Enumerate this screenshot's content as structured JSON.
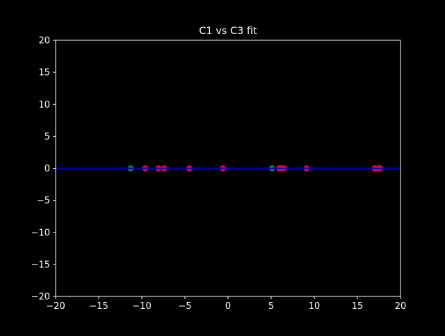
{
  "chart_data": {
    "type": "scatter",
    "title": "C1 vs C3 fit",
    "xlabel": "",
    "ylabel": "",
    "xlim": [
      -20,
      20
    ],
    "ylim": [
      -20,
      20
    ],
    "x_ticks": [
      -20,
      -15,
      -10,
      -5,
      0,
      5,
      10,
      15,
      20
    ],
    "y_ticks": [
      -20,
      -15,
      -10,
      -5,
      0,
      5,
      10,
      15,
      20
    ],
    "x_tick_labels": [
      "−20",
      "−15",
      "−10",
      "−5",
      "0",
      "5",
      "10",
      "15",
      "20"
    ],
    "y_tick_labels": [
      "−20",
      "−15",
      "−10",
      "−5",
      "0",
      "5",
      "10",
      "15",
      "20"
    ],
    "grid": false,
    "background": "#000000",
    "foreground": "#ffffff",
    "series": [
      {
        "kind": "scatter",
        "color": "#e8003f",
        "points": [
          {
            "x": -9.6,
            "y": 0
          },
          {
            "x": -8.1,
            "y": 0
          },
          {
            "x": -7.4,
            "y": 0
          },
          {
            "x": -4.5,
            "y": 0
          },
          {
            "x": -0.6,
            "y": 0
          },
          {
            "x": 5.9,
            "y": 0
          },
          {
            "x": 6.2,
            "y": 0
          },
          {
            "x": 6.5,
            "y": 0
          },
          {
            "x": 9.1,
            "y": 0
          },
          {
            "x": 17.0,
            "y": 0
          },
          {
            "x": 17.4,
            "y": 0
          },
          {
            "x": 17.6,
            "y": 0
          }
        ]
      },
      {
        "kind": "scatter",
        "color": "#1a7a3c",
        "points": [
          {
            "x": -11.3,
            "y": 0
          },
          {
            "x": 5.1,
            "y": 0
          }
        ]
      },
      {
        "kind": "line",
        "color": "#0000cc",
        "points": [
          {
            "x": -20,
            "y": 0
          },
          {
            "x": 20,
            "y": 0
          }
        ]
      }
    ]
  }
}
